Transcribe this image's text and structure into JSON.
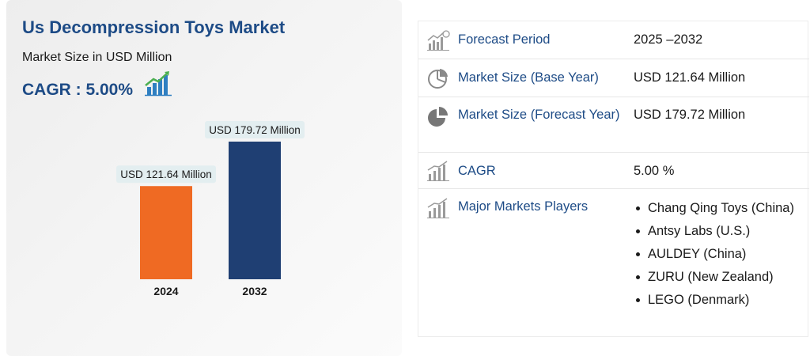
{
  "header": {
    "title": "Us Decompression Toys Market",
    "subtitle": "Market Size in USD Million",
    "cagr_label": "CAGR : 5.00%"
  },
  "chart_data": {
    "type": "bar",
    "categories": [
      "2024",
      "2032"
    ],
    "values": [
      121.64,
      179.72
    ],
    "value_labels": [
      "USD 121.64 Million",
      "USD 179.72 Million"
    ],
    "colors": [
      "#ef6a23",
      "#1f3f73"
    ],
    "ylabel": "",
    "xlabel": "",
    "grid": false
  },
  "table": {
    "rows": [
      {
        "icon": "forecast-chart-icon",
        "label": "Forecast Period",
        "value": "2025 –2032"
      },
      {
        "icon": "pie-chart-icon",
        "label": "Market Size (Base Year)",
        "value": "USD 121.64 Million"
      },
      {
        "icon": "pie-chart-solid-icon",
        "label": "Market Size (Forecast Year)",
        "value": "USD 179.72 Million"
      },
      {
        "icon": "bar-growth-icon",
        "label": "CAGR",
        "value": "5.00 %"
      },
      {
        "icon": "bar-growth-icon",
        "label": "Major Markets Players",
        "players": [
          "Chang Qing Toys (China)",
          "Antsy Labs (U.S.)",
          "AULDEY (China)",
          "ZURU (New Zealand)",
          "LEGO (Denmark)"
        ]
      }
    ]
  },
  "colors": {
    "accent": "#1d4b86",
    "bar_2024": "#ef6a23",
    "bar_2032": "#1f3f73"
  }
}
